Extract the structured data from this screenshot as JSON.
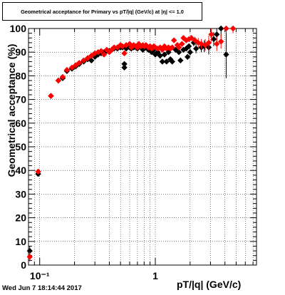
{
  "timestamp": "Wed Jun  7 18:14:44 2017",
  "chart_data": {
    "type": "scatter",
    "title": "Geometrical acceptance for Primary vs pT/|q| (GeV/c) at |η| <= 1.0",
    "xlabel": "pT/|q| (GeV/c)",
    "ylabel": "Geometrical acceptance (%)",
    "xscale": "log",
    "xlim": [
      0.08,
      7.5
    ],
    "ylim": [
      0,
      100
    ],
    "grid": true,
    "x_tick_labels": [
      {
        "value": 0.1,
        "label": "10⁻¹"
      },
      {
        "value": 1,
        "label": "1"
      }
    ],
    "y_ticks": [
      0,
      10,
      20,
      30,
      40,
      50,
      60,
      70,
      80,
      90,
      100
    ],
    "colors": {
      "series_black": "#000000",
      "series_red": "#ff0000"
    },
    "series": [
      {
        "color": "black",
        "points": [
          [
            0.082,
            6,
            2
          ],
          [
            0.097,
            38.5,
            0.8
          ],
          [
            0.125,
            71.5,
            0.6
          ],
          [
            0.145,
            78,
            0.6
          ],
          [
            0.158,
            79,
            0.6
          ],
          [
            0.172,
            82,
            0.6
          ],
          [
            0.19,
            83,
            0.6
          ],
          [
            0.205,
            84,
            0.6
          ],
          [
            0.22,
            85,
            0.6
          ],
          [
            0.24,
            86,
            0.6
          ],
          [
            0.26,
            87,
            0.6
          ],
          [
            0.28,
            86.5,
            0.6
          ],
          [
            0.3,
            88,
            0.6
          ],
          [
            0.32,
            89,
            0.6
          ],
          [
            0.34,
            89.5,
            0.6
          ],
          [
            0.36,
            90,
            0.6
          ],
          [
            0.38,
            90.5,
            0.6
          ],
          [
            0.4,
            90.5,
            0.6
          ],
          [
            0.42,
            91,
            0.6
          ],
          [
            0.44,
            91.5,
            0.6
          ],
          [
            0.47,
            91.5,
            0.6
          ],
          [
            0.5,
            92,
            0.6
          ],
          [
            0.52,
            92,
            0.6
          ],
          [
            0.54,
            85,
            1
          ],
          [
            0.54,
            83.5,
            1
          ],
          [
            0.56,
            91.5,
            0.6
          ],
          [
            0.6,
            92,
            0.6
          ],
          [
            0.62,
            91.5,
            0.6
          ],
          [
            0.65,
            92,
            0.6
          ],
          [
            0.68,
            92,
            0.6
          ],
          [
            0.7,
            91.5,
            0.6
          ],
          [
            0.72,
            93,
            0.6
          ],
          [
            0.75,
            92,
            0.6
          ],
          [
            0.78,
            91,
            0.6
          ],
          [
            0.8,
            91.5,
            0.6
          ],
          [
            0.83,
            92,
            0.6
          ],
          [
            0.87,
            91,
            0.6
          ],
          [
            0.9,
            91,
            0.6
          ],
          [
            0.93,
            90,
            0.6
          ],
          [
            0.97,
            91,
            0.6
          ],
          [
            1.0,
            89,
            0.8
          ],
          [
            1.05,
            90,
            0.8
          ],
          [
            1.1,
            88.5,
            0.8
          ],
          [
            1.15,
            86,
            1
          ],
          [
            1.2,
            89,
            0.8
          ],
          [
            1.25,
            86,
            1
          ],
          [
            1.3,
            90,
            0.8
          ],
          [
            1.35,
            87,
            1
          ],
          [
            1.4,
            86,
            1
          ],
          [
            1.5,
            91,
            0.8
          ],
          [
            1.6,
            90,
            0.8
          ],
          [
            1.65,
            86.5,
            1
          ],
          [
            1.75,
            91,
            0.8
          ],
          [
            1.85,
            91.5,
            0.8
          ],
          [
            1.9,
            88,
            1.2
          ],
          [
            1.95,
            92.5,
            1
          ],
          [
            2.0,
            90,
            1.5
          ],
          [
            2.15,
            94,
            1.5
          ],
          [
            2.25,
            91.5,
            2
          ],
          [
            2.5,
            92,
            2
          ],
          [
            2.65,
            92.5,
            2.5
          ],
          [
            2.9,
            92,
            3
          ],
          [
            3.2,
            95.5,
            3
          ],
          [
            3.4,
            97.5,
            3
          ],
          [
            3.7,
            100,
            4
          ],
          [
            4.1,
            89,
            10
          ]
        ]
      },
      {
        "color": "red",
        "points": [
          [
            0.082,
            3.5,
            2
          ],
          [
            0.097,
            39.5,
            0.8
          ],
          [
            0.125,
            71.5,
            0.6
          ],
          [
            0.145,
            78,
            0.6
          ],
          [
            0.158,
            79.5,
            0.6
          ],
          [
            0.172,
            82.5,
            0.6
          ],
          [
            0.19,
            83.5,
            0.6
          ],
          [
            0.205,
            84.5,
            0.6
          ],
          [
            0.22,
            85.5,
            0.6
          ],
          [
            0.24,
            86.5,
            0.6
          ],
          [
            0.26,
            87.5,
            0.6
          ],
          [
            0.28,
            88.5,
            0.6
          ],
          [
            0.3,
            89.5,
            0.6
          ],
          [
            0.32,
            90,
            0.6
          ],
          [
            0.34,
            90.5,
            0.6
          ],
          [
            0.36,
            89,
            0.6
          ],
          [
            0.38,
            91,
            0.6
          ],
          [
            0.4,
            90,
            0.6
          ],
          [
            0.42,
            91,
            0.6
          ],
          [
            0.44,
            92,
            0.6
          ],
          [
            0.47,
            92,
            0.6
          ],
          [
            0.5,
            93,
            0.6
          ],
          [
            0.52,
            92.5,
            0.6
          ],
          [
            0.54,
            89.5,
            0.6
          ],
          [
            0.56,
            93,
            0.6
          ],
          [
            0.6,
            93.5,
            0.6
          ],
          [
            0.62,
            92,
            0.6
          ],
          [
            0.65,
            93,
            0.6
          ],
          [
            0.68,
            92.5,
            0.6
          ],
          [
            0.7,
            92,
            0.6
          ],
          [
            0.72,
            93.5,
            0.6
          ],
          [
            0.75,
            92.5,
            0.6
          ],
          [
            0.78,
            93,
            0.6
          ],
          [
            0.8,
            92.5,
            0.6
          ],
          [
            0.83,
            93,
            0.6
          ],
          [
            0.87,
            92,
            0.6
          ],
          [
            0.9,
            92.5,
            0.6
          ],
          [
            0.93,
            91.5,
            0.6
          ],
          [
            0.97,
            92.5,
            0.6
          ],
          [
            1.0,
            92,
            0.8
          ],
          [
            1.05,
            91.5,
            0.8
          ],
          [
            1.1,
            92,
            0.8
          ],
          [
            1.15,
            91,
            0.8
          ],
          [
            1.2,
            92.5,
            0.8
          ],
          [
            1.25,
            91.5,
            0.8
          ],
          [
            1.3,
            92,
            0.8
          ],
          [
            1.35,
            91.5,
            0.8
          ],
          [
            1.4,
            92,
            0.8
          ],
          [
            1.45,
            95,
            1
          ],
          [
            1.55,
            93,
            0.8
          ],
          [
            1.6,
            92,
            0.8
          ],
          [
            1.7,
            93.5,
            0.8
          ],
          [
            1.75,
            96,
            1
          ],
          [
            1.85,
            95,
            1
          ],
          [
            1.95,
            95.5,
            1
          ],
          [
            2.05,
            96,
            1.2
          ],
          [
            2.2,
            95,
            1.5
          ],
          [
            2.35,
            94,
            2
          ],
          [
            2.5,
            93.5,
            2
          ],
          [
            2.7,
            93,
            2.5
          ],
          [
            2.9,
            94,
            3
          ],
          [
            3.05,
            97.5,
            3
          ],
          [
            3.4,
            93.5,
            3
          ],
          [
            3.7,
            94.5,
            3
          ],
          [
            4.1,
            100,
            2
          ],
          [
            4.7,
            100,
            2
          ]
        ]
      }
    ]
  }
}
